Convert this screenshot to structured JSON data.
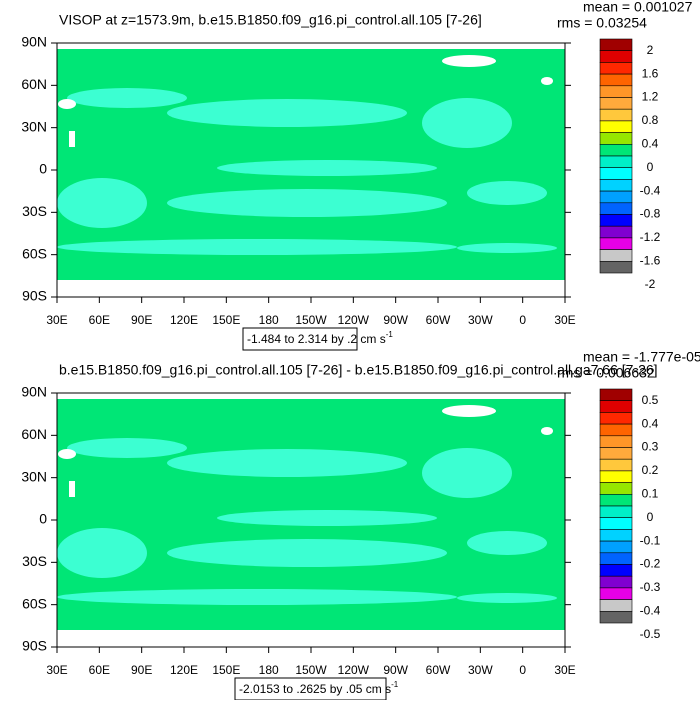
{
  "panels": [
    {
      "title": "VISOP at z=1573.9m, b.e15.B1850.f09_g16.pi_control.all.105 [7-26]",
      "stats": [
        "mean = 0.001027",
        "rms = 0.03254"
      ],
      "yticks": [
        "90N",
        "60N",
        "30N",
        "0",
        "30S",
        "60S",
        "90S"
      ],
      "xticks": [
        "30E",
        "60E",
        "90E",
        "120E",
        "150E",
        "180",
        "150W",
        "120W",
        "90W",
        "60W",
        "30W",
        "0",
        "30E"
      ],
      "range_label": "-1.484 to 2.314 by .2 cm s",
      "range_unit_exp": "-1",
      "colorbar_labels": [
        2,
        1.6,
        1.2,
        0.8,
        0.4,
        0,
        -0.4,
        -0.8,
        -1.2,
        -1.6,
        -2
      ]
    },
    {
      "title": "b.e15.B1850.f09_g16.pi_control.all.105 [7-26] - b.e15.B1850.f09_g16.pi_control.all.ga7.66 [7-26]",
      "stats": [
        "mean = -1.777e-05",
        "rms = 0.006632"
      ],
      "yticks": [
        "90N",
        "60N",
        "30N",
        "0",
        "30S",
        "60S",
        "90S"
      ],
      "xticks": [
        "30E",
        "60E",
        "90E",
        "120E",
        "150E",
        "180",
        "150W",
        "120W",
        "90W",
        "60W",
        "30W",
        "0",
        "30E"
      ],
      "range_label": "-2.0153 to .2625 by .05 cm s",
      "range_unit_exp": "-1",
      "colorbar_labels": [
        0.5,
        0.4,
        0.3,
        0.2,
        0.1,
        0,
        -0.1,
        -0.2,
        -0.3,
        -0.4,
        -0.5
      ]
    }
  ],
  "colorbar_colors": [
    "#a00000",
    "#e00000",
    "#ff2800",
    "#ff6400",
    "#ff9628",
    "#ffaa3c",
    "#ffc83c",
    "#ffff00",
    "#96e600",
    "#00e676",
    "#00f0c8",
    "#00ffff",
    "#00d2ff",
    "#00a0ff",
    "#0064ff",
    "#0000ff",
    "#8000d0",
    "#e600e6",
    "#c8c8c8",
    "#646464"
  ]
}
